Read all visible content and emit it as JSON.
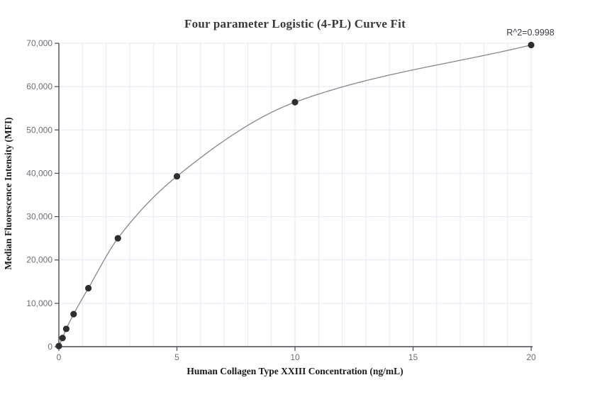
{
  "page": {
    "background": "#ffffff"
  },
  "chart_data": {
    "type": "scatter",
    "title": "Four parameter Logistic (4-PL) Curve Fit",
    "annotation": "R^2=0.9998",
    "xlabel": "Human Collagen Type XXIII Concentration (ng/mL)",
    "ylabel": "Median Fluorescence Intensity (MFI)",
    "x": [
      0,
      0.156,
      0.313,
      0.625,
      1.25,
      2.5,
      5,
      10,
      20
    ],
    "y": [
      150,
      2000,
      4100,
      7500,
      13500,
      25000,
      39300,
      56400,
      69600
    ],
    "curve": "smooth 4PL fit line passing through all points",
    "xlim": [
      0,
      20
    ],
    "ylim": [
      0,
      70000
    ],
    "x_ticks": [
      0,
      5,
      10,
      15,
      20
    ],
    "x_tick_labels": [
      "0",
      "5",
      "10",
      "15",
      "20"
    ],
    "y_ticks": [
      0,
      10000,
      20000,
      30000,
      40000,
      50000,
      60000,
      70000
    ],
    "y_tick_labels": [
      "0",
      "10,000",
      "20,000",
      "30,000",
      "40,000",
      "50,000",
      "60,000",
      "70,000"
    ],
    "x_grid_step": 1,
    "y_grid_step": 10000,
    "grid": true,
    "legend_position": "none",
    "colors": {
      "grid": "#e4e9f2",
      "axis": "#474a52",
      "tick_label": "#6b6e76",
      "point": "#2e2e31",
      "curve": "#8e8e92",
      "title": "#3a3a3a",
      "annotation": "#3a3d44",
      "axis_title": "#1a1a1a",
      "background": "#ffffff"
    }
  }
}
